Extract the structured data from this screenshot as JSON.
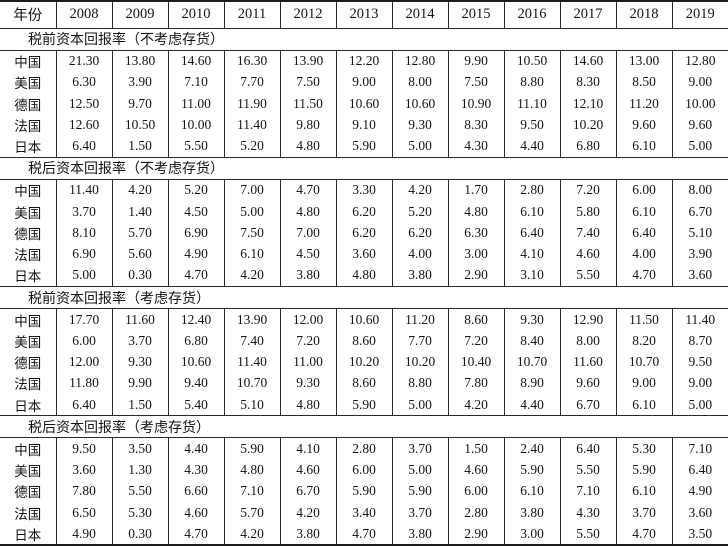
{
  "table": {
    "header": {
      "year_label": "年份",
      "years": [
        "2008",
        "2009",
        "2010",
        "2011",
        "2012",
        "2013",
        "2014",
        "2015",
        "2016",
        "2017",
        "2018",
        "2019"
      ]
    },
    "sections": [
      {
        "title": "税前资本回报率（不考虑存货）",
        "rows": [
          {
            "label": "中国",
            "values": [
              "21.30",
              "13.80",
              "14.60",
              "16.30",
              "13.90",
              "12.20",
              "12.80",
              "9.90",
              "10.50",
              "14.60",
              "13.00",
              "12.80"
            ]
          },
          {
            "label": "美国",
            "values": [
              "6.30",
              "3.90",
              "7.10",
              "7.70",
              "7.50",
              "9.00",
              "8.00",
              "7.50",
              "8.80",
              "8.30",
              "8.50",
              "9.00"
            ]
          },
          {
            "label": "德国",
            "values": [
              "12.50",
              "9.70",
              "11.00",
              "11.90",
              "11.50",
              "10.60",
              "10.60",
              "10.90",
              "11.10",
              "12.10",
              "11.20",
              "10.00"
            ]
          },
          {
            "label": "法国",
            "values": [
              "12.60",
              "10.50",
              "10.00",
              "11.40",
              "9.80",
              "9.10",
              "9.30",
              "8.30",
              "9.50",
              "10.20",
              "9.60",
              "9.60"
            ]
          },
          {
            "label": "日本",
            "values": [
              "6.40",
              "1.50",
              "5.50",
              "5.20",
              "4.80",
              "5.90",
              "5.00",
              "4.30",
              "4.40",
              "6.80",
              "6.10",
              "5.00"
            ]
          }
        ]
      },
      {
        "title": "税后资本回报率（不考虑存货）",
        "rows": [
          {
            "label": "中国",
            "values": [
              "11.40",
              "4.20",
              "5.20",
              "7.00",
              "4.70",
              "3.30",
              "4.20",
              "1.70",
              "2.80",
              "7.20",
              "6.00",
              "8.00"
            ]
          },
          {
            "label": "美国",
            "values": [
              "3.70",
              "1.40",
              "4.50",
              "5.00",
              "4.80",
              "6.20",
              "5.20",
              "4.80",
              "6.10",
              "5.80",
              "6.10",
              "6.70"
            ]
          },
          {
            "label": "德国",
            "values": [
              "8.10",
              "5.70",
              "6.90",
              "7.50",
              "7.00",
              "6.20",
              "6.20",
              "6.30",
              "6.40",
              "7.40",
              "6.40",
              "5.10"
            ]
          },
          {
            "label": "法国",
            "values": [
              "6.90",
              "5.60",
              "4.90",
              "6.10",
              "4.50",
              "3.60",
              "4.00",
              "3.00",
              "4.10",
              "4.60",
              "4.00",
              "3.90"
            ]
          },
          {
            "label": "日本",
            "values": [
              "5.00",
              "0.30",
              "4.70",
              "4.20",
              "3.80",
              "4.80",
              "3.80",
              "2.90",
              "3.10",
              "5.50",
              "4.70",
              "3.60"
            ]
          }
        ]
      },
      {
        "title": "税前资本回报率（考虑存货）",
        "rows": [
          {
            "label": "中国",
            "values": [
              "17.70",
              "11.60",
              "12.40",
              "13.90",
              "12.00",
              "10.60",
              "11.20",
              "8.60",
              "9.30",
              "12.90",
              "11.50",
              "11.40"
            ]
          },
          {
            "label": "美国",
            "values": [
              "6.00",
              "3.70",
              "6.80",
              "7.40",
              "7.20",
              "8.60",
              "7.70",
              "7.20",
              "8.40",
              "8.00",
              "8.20",
              "8.70"
            ]
          },
          {
            "label": "德国",
            "values": [
              "12.00",
              "9.30",
              "10.60",
              "11.40",
              "11.00",
              "10.20",
              "10.20",
              "10.40",
              "10.70",
              "11.60",
              "10.70",
              "9.50"
            ]
          },
          {
            "label": "法国",
            "values": [
              "11.80",
              "9.90",
              "9.40",
              "10.70",
              "9.30",
              "8.60",
              "8.80",
              "7.80",
              "8.90",
              "9.60",
              "9.00",
              "9.00"
            ]
          },
          {
            "label": "日本",
            "values": [
              "6.40",
              "1.50",
              "5.40",
              "5.10",
              "4.80",
              "5.90",
              "5.00",
              "4.20",
              "4.40",
              "6.70",
              "6.10",
              "5.00"
            ]
          }
        ]
      },
      {
        "title": "税后资本回报率（考虑存货）",
        "rows": [
          {
            "label": "中国",
            "values": [
              "9.50",
              "3.50",
              "4.40",
              "5.90",
              "4.10",
              "2.80",
              "3.70",
              "1.50",
              "2.40",
              "6.40",
              "5.30",
              "7.10"
            ]
          },
          {
            "label": "美国",
            "values": [
              "3.60",
              "1.30",
              "4.30",
              "4.80",
              "4.60",
              "6.00",
              "5.00",
              "4.60",
              "5.90",
              "5.50",
              "5.90",
              "6.40"
            ]
          },
          {
            "label": "德国",
            "values": [
              "7.80",
              "5.50",
              "6.60",
              "7.10",
              "6.70",
              "5.90",
              "5.90",
              "6.00",
              "6.10",
              "7.10",
              "6.10",
              "4.90"
            ]
          },
          {
            "label": "法国",
            "values": [
              "6.50",
              "5.30",
              "4.60",
              "5.70",
              "4.20",
              "3.40",
              "3.70",
              "2.80",
              "3.80",
              "4.30",
              "3.70",
              "3.60"
            ]
          },
          {
            "label": "日本",
            "values": [
              "4.90",
              "0.30",
              "4.70",
              "4.20",
              "3.80",
              "4.70",
              "3.80",
              "2.90",
              "3.00",
              "5.50",
              "4.70",
              "3.50"
            ]
          }
        ]
      }
    ]
  },
  "colors": {
    "border": "#1c1c1c",
    "inner_line": "#2a2a2a",
    "text": "#141414",
    "background": "#ffffff"
  }
}
